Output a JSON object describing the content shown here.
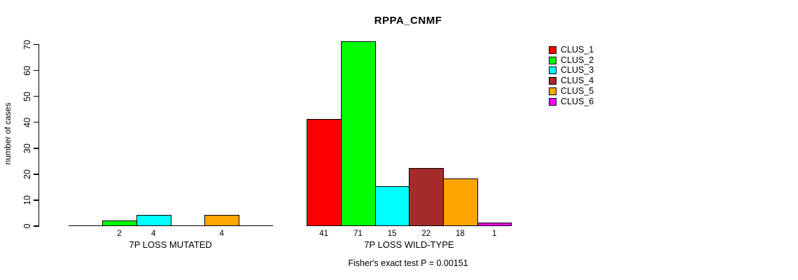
{
  "chart_data": {
    "type": "bar",
    "title": "RPPA_CNMF",
    "ylabel": "number of cases",
    "ylim": [
      0,
      70
    ],
    "yticks": [
      0,
      10,
      20,
      30,
      40,
      50,
      60,
      70
    ],
    "grid": false,
    "legend_position": "right",
    "clusters": [
      {
        "label": "CLUS_1",
        "color": "#ff0000"
      },
      {
        "label": "CLUS_2",
        "color": "#00ff00"
      },
      {
        "label": "CLUS_3",
        "color": "#00ffff"
      },
      {
        "label": "CLUS_4",
        "color": "#a52a2a"
      },
      {
        "label": "CLUS_5",
        "color": "#ffa500"
      },
      {
        "label": "CLUS_6",
        "color": "#ff00ff"
      }
    ],
    "groups": [
      {
        "label": "7P LOSS MUTATED",
        "values": [
          0,
          2,
          4,
          0,
          4,
          0
        ]
      },
      {
        "label": "7P LOSS WILD-TYPE",
        "values": [
          41,
          71,
          15,
          22,
          18,
          1
        ]
      }
    ],
    "footnote": "Fisher's exact test P = 0.00151"
  },
  "colors": {
    "background": "#ffffff",
    "axis": "#000000",
    "text": "#000000"
  }
}
